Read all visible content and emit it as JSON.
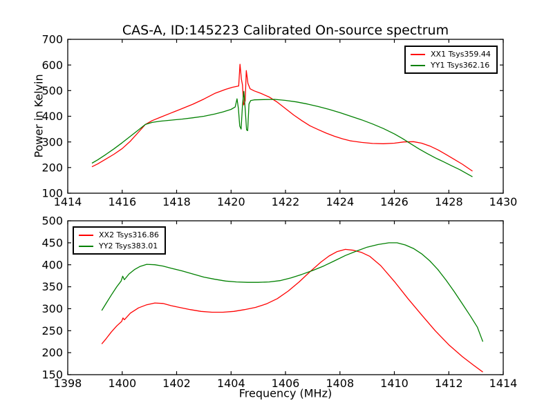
{
  "figure": {
    "title": "CAS-A, ID:145223 Calibrated On-source spectrum",
    "ylabel": "Power in Kelvin",
    "xlabel": "Frequency (MHz)",
    "background": "#ffffff",
    "frame_color": "#000000"
  },
  "chart_data": [
    {
      "type": "line",
      "title": "CAS-A, ID:145223 Calibrated On-source spectrum",
      "xlabel": "",
      "ylabel": "Power in Kelvin",
      "xlim": [
        1414,
        1430
      ],
      "ylim": [
        100,
        700
      ],
      "xticks": [
        1414,
        1416,
        1418,
        1420,
        1422,
        1424,
        1426,
        1428,
        1430
      ],
      "yticks": [
        100,
        200,
        300,
        400,
        500,
        600,
        700
      ],
      "grid": false,
      "legend_position": "top-right",
      "series": [
        {
          "name": "XX1 Tsys359.44",
          "color": "#ff0000",
          "points": [
            [
              1414.89,
              203
            ],
            [
              1415.1,
              214
            ],
            [
              1415.4,
              233
            ],
            [
              1415.7,
              252
            ],
            [
              1416.0,
              274
            ],
            [
              1416.3,
              303
            ],
            [
              1416.6,
              338
            ],
            [
              1416.85,
              368
            ],
            [
              1417.1,
              383
            ],
            [
              1417.4,
              396
            ],
            [
              1417.8,
              413
            ],
            [
              1418.2,
              430
            ],
            [
              1418.6,
              447
            ],
            [
              1419.0,
              467
            ],
            [
              1419.4,
              489
            ],
            [
              1419.8,
              505
            ],
            [
              1420.05,
              513
            ],
            [
              1420.28,
              518
            ],
            [
              1420.33,
              603
            ],
            [
              1420.38,
              545
            ],
            [
              1420.42,
              522
            ],
            [
              1420.46,
              444
            ],
            [
              1420.52,
              460
            ],
            [
              1420.56,
              578
            ],
            [
              1420.62,
              528
            ],
            [
              1420.7,
              507
            ],
            [
              1420.85,
              499
            ],
            [
              1421.1,
              489
            ],
            [
              1421.4,
              475
            ],
            [
              1421.7,
              455
            ],
            [
              1422.0,
              430
            ],
            [
              1422.3,
              405
            ],
            [
              1422.6,
              383
            ],
            [
              1422.9,
              363
            ],
            [
              1423.2,
              348
            ],
            [
              1423.5,
              334
            ],
            [
              1423.8,
              322
            ],
            [
              1424.1,
              312
            ],
            [
              1424.4,
              304
            ],
            [
              1424.8,
              298
            ],
            [
              1425.2,
              294
            ],
            [
              1425.6,
              293
            ],
            [
              1426.0,
              295
            ],
            [
              1426.35,
              300
            ],
            [
              1426.7,
              301
            ],
            [
              1427.0,
              295
            ],
            [
              1427.3,
              284
            ],
            [
              1427.6,
              269
            ],
            [
              1427.9,
              251
            ],
            [
              1428.2,
              232
            ],
            [
              1428.5,
              213
            ],
            [
              1428.87,
              186
            ]
          ]
        },
        {
          "name": "YY1 Tsys362.16",
          "color": "#008000",
          "points": [
            [
              1414.89,
              217
            ],
            [
              1415.1,
              230
            ],
            [
              1415.4,
              251
            ],
            [
              1415.7,
              273
            ],
            [
              1416.0,
              297
            ],
            [
              1416.3,
              322
            ],
            [
              1416.6,
              347
            ],
            [
              1416.85,
              368
            ],
            [
              1417.1,
              376
            ],
            [
              1417.4,
              381
            ],
            [
              1417.8,
              385
            ],
            [
              1418.2,
              389
            ],
            [
              1418.6,
              394
            ],
            [
              1419.0,
              400
            ],
            [
              1419.4,
              409
            ],
            [
              1419.7,
              417
            ],
            [
              1420.0,
              427
            ],
            [
              1420.15,
              436
            ],
            [
              1420.22,
              468
            ],
            [
              1420.27,
              430
            ],
            [
              1420.32,
              362
            ],
            [
              1420.37,
              350
            ],
            [
              1420.42,
              445
            ],
            [
              1420.47,
              497
            ],
            [
              1420.52,
              428
            ],
            [
              1420.57,
              347
            ],
            [
              1420.61,
              344
            ],
            [
              1420.66,
              448
            ],
            [
              1420.72,
              461
            ],
            [
              1420.85,
              464
            ],
            [
              1421.2,
              465
            ],
            [
              1421.6,
              466
            ],
            [
              1422.0,
              462
            ],
            [
              1422.4,
              456
            ],
            [
              1422.8,
              448
            ],
            [
              1423.2,
              438
            ],
            [
              1423.6,
              427
            ],
            [
              1424.0,
              414
            ],
            [
              1424.4,
              400
            ],
            [
              1424.8,
              386
            ],
            [
              1425.2,
              370
            ],
            [
              1425.6,
              352
            ],
            [
              1426.0,
              331
            ],
            [
              1426.3,
              313
            ],
            [
              1426.6,
              293
            ],
            [
              1426.9,
              273
            ],
            [
              1427.2,
              255
            ],
            [
              1427.5,
              238
            ],
            [
              1427.8,
              223
            ],
            [
              1428.1,
              207
            ],
            [
              1428.4,
              192
            ],
            [
              1428.87,
              164
            ]
          ]
        }
      ]
    },
    {
      "type": "line",
      "title": "",
      "xlabel": "Frequency (MHz)",
      "ylabel": "",
      "xlim": [
        1398,
        1414
      ],
      "ylim": [
        150,
        500
      ],
      "xticks": [
        1398,
        1400,
        1402,
        1404,
        1406,
        1408,
        1410,
        1412,
        1414
      ],
      "yticks": [
        150,
        200,
        250,
        300,
        350,
        400,
        450,
        500
      ],
      "grid": false,
      "legend_position": "top-left",
      "series": [
        {
          "name": "XX2 Tsys316.86",
          "color": "#ff0000",
          "points": [
            [
              1399.25,
              220
            ],
            [
              1399.4,
              231
            ],
            [
              1399.6,
              247
            ],
            [
              1399.8,
              261
            ],
            [
              1399.98,
              271
            ],
            [
              1400.03,
              279
            ],
            [
              1400.08,
              275
            ],
            [
              1400.3,
              290
            ],
            [
              1400.6,
              302
            ],
            [
              1400.9,
              309
            ],
            [
              1401.2,
              313
            ],
            [
              1401.5,
              312
            ],
            [
              1401.8,
              307
            ],
            [
              1402.1,
              303
            ],
            [
              1402.5,
              298
            ],
            [
              1402.9,
              294
            ],
            [
              1403.3,
              292
            ],
            [
              1403.7,
              292
            ],
            [
              1404.1,
              294
            ],
            [
              1404.5,
              298
            ],
            [
              1404.9,
              303
            ],
            [
              1405.3,
              311
            ],
            [
              1405.7,
              323
            ],
            [
              1406.1,
              340
            ],
            [
              1406.5,
              361
            ],
            [
              1406.9,
              384
            ],
            [
              1407.3,
              406
            ],
            [
              1407.6,
              420
            ],
            [
              1407.9,
              430
            ],
            [
              1408.2,
              435
            ],
            [
              1408.5,
              433
            ],
            [
              1408.8,
              428
            ],
            [
              1409.1,
              419
            ],
            [
              1409.5,
              398
            ],
            [
              1410.0,
              362
            ],
            [
              1410.5,
              323
            ],
            [
              1411.0,
              286
            ],
            [
              1411.5,
              250
            ],
            [
              1412.0,
              218
            ],
            [
              1412.5,
              191
            ],
            [
              1412.9,
              172
            ],
            [
              1413.25,
              156
            ]
          ]
        },
        {
          "name": "YY2 Tsys383.01",
          "color": "#008000",
          "points": [
            [
              1399.25,
              296
            ],
            [
              1399.4,
              311
            ],
            [
              1399.6,
              331
            ],
            [
              1399.8,
              350
            ],
            [
              1399.96,
              363
            ],
            [
              1400.02,
              374
            ],
            [
              1400.08,
              366
            ],
            [
              1400.25,
              379
            ],
            [
              1400.45,
              389
            ],
            [
              1400.65,
              396
            ],
            [
              1400.9,
              401
            ],
            [
              1401.2,
              400
            ],
            [
              1401.5,
              397
            ],
            [
              1401.8,
              392
            ],
            [
              1402.2,
              386
            ],
            [
              1402.6,
              379
            ],
            [
              1403.0,
              372
            ],
            [
              1403.4,
              367
            ],
            [
              1403.8,
              363
            ],
            [
              1404.2,
              361
            ],
            [
              1404.6,
              360
            ],
            [
              1405.0,
              360
            ],
            [
              1405.4,
              361
            ],
            [
              1405.8,
              364
            ],
            [
              1406.2,
              370
            ],
            [
              1406.6,
              378
            ],
            [
              1407.0,
              387
            ],
            [
              1407.4,
              397
            ],
            [
              1407.8,
              409
            ],
            [
              1408.2,
              421
            ],
            [
              1408.6,
              431
            ],
            [
              1409.0,
              440
            ],
            [
              1409.4,
              446
            ],
            [
              1409.8,
              450
            ],
            [
              1410.1,
              450
            ],
            [
              1410.4,
              445
            ],
            [
              1410.7,
              437
            ],
            [
              1411.0,
              425
            ],
            [
              1411.3,
              409
            ],
            [
              1411.6,
              389
            ],
            [
              1411.9,
              365
            ],
            [
              1412.2,
              339
            ],
            [
              1412.5,
              311
            ],
            [
              1412.8,
              283
            ],
            [
              1413.05,
              258
            ],
            [
              1413.25,
              225
            ]
          ]
        }
      ]
    }
  ]
}
